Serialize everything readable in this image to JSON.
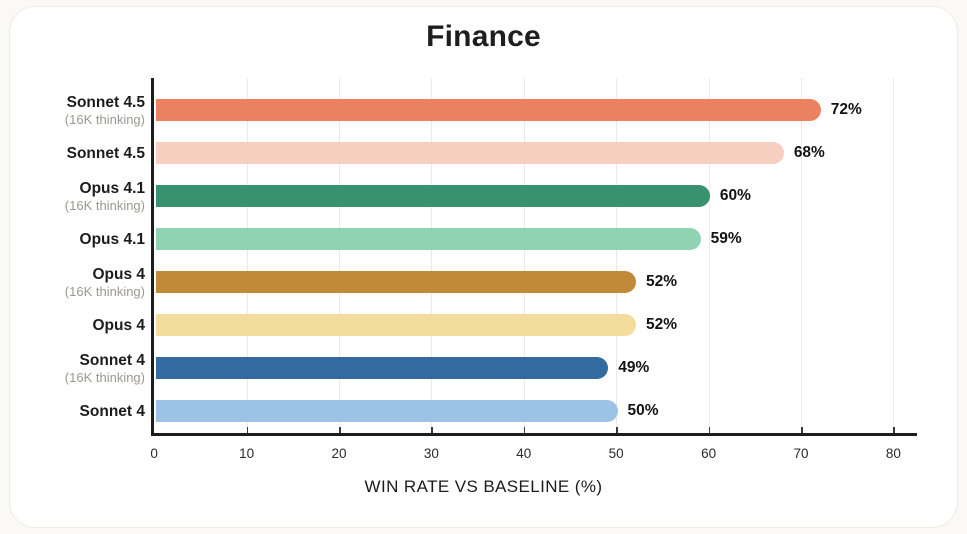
{
  "page": {
    "background_color": "#FAF9F5",
    "card_color": "#FFFFFF",
    "axis_color": "#1D1D1D",
    "gridline_color": "#ECE9E2"
  },
  "chart_data": {
    "type": "bar",
    "orientation": "horizontal",
    "title": "Finance",
    "xlabel": "WIN RATE VS BASELINE (%)",
    "xlim": [
      0,
      80
    ],
    "xticks": [
      0,
      10,
      20,
      30,
      40,
      50,
      60,
      70,
      80
    ],
    "grid": true,
    "legend": "none",
    "categories": [
      {
        "label": "Sonnet 4.5",
        "sublabel": "(16K thinking)"
      },
      {
        "label": "Sonnet 4.5",
        "sublabel": ""
      },
      {
        "label": "Opus 4.1",
        "sublabel": "(16K thinking)"
      },
      {
        "label": "Opus 4.1",
        "sublabel": ""
      },
      {
        "label": "Opus 4",
        "sublabel": "(16K thinking)"
      },
      {
        "label": "Opus 4",
        "sublabel": ""
      },
      {
        "label": "Sonnet 4",
        "sublabel": "(16K thinking)"
      },
      {
        "label": "Sonnet 4",
        "sublabel": ""
      }
    ],
    "values": [
      72,
      68,
      60,
      59,
      52,
      52,
      49,
      50
    ],
    "value_labels": [
      "72%",
      "68%",
      "60%",
      "59%",
      "52%",
      "52%",
      "49%",
      "50%"
    ],
    "bar_colors": [
      "#EC8162",
      "#F6CFC0",
      "#38926E",
      "#90D3B2",
      "#C18A38",
      "#F3DC9E",
      "#336AA0",
      "#9CC3E6"
    ]
  }
}
